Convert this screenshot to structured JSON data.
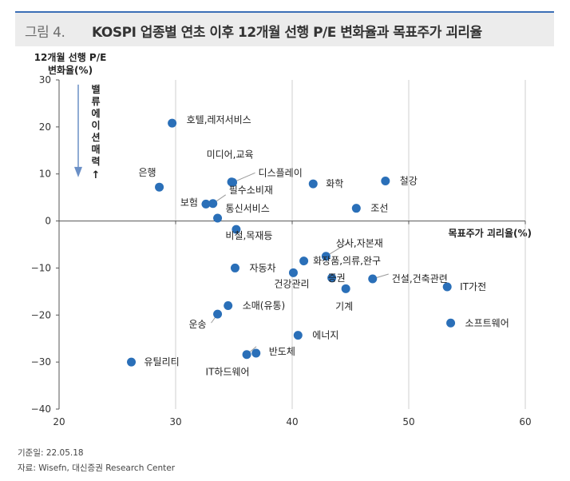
{
  "title_bar": {
    "number": "그림 4.",
    "title": "KOSPI 업종별 연초 이후 12개월 선행 P/E 변화율과 목표주가 괴리율"
  },
  "chart_data": {
    "type": "scatter",
    "ylabel_line1": "12개월 선행 P/E",
    "ylabel_line2": "변화율(%)",
    "xlabel": "목표주가 괴리율(%)",
    "annotation": "밸류에이션 매력",
    "xlim": [
      20,
      60
    ],
    "ylim": [
      -40,
      30
    ],
    "x_ticks": [
      20,
      30,
      40,
      50,
      60
    ],
    "y_ticks": [
      30,
      20,
      10,
      0,
      -10,
      -20,
      -30,
      -40
    ],
    "x_tick_labels": [
      "20",
      "30",
      "40",
      "50",
      "60"
    ],
    "y_tick_labels": [
      "30",
      "20",
      "10",
      "0",
      "−10",
      "−20",
      "−30",
      "−40"
    ],
    "grid": "vertical",
    "marker_color": "#2a6fb8",
    "points": [
      {
        "label": "호텔,레저서비스",
        "x": 29.7,
        "y": 20.8
      },
      {
        "label": "은행",
        "x": 28.6,
        "y": 7.2
      },
      {
        "label": "미디어,교육",
        "x": 34.8,
        "y": 8.3
      },
      {
        "label": "디스플레이",
        "x": 34.9,
        "y": 8.2
      },
      {
        "label": "필수소비재",
        "x": 33.2,
        "y": 3.7
      },
      {
        "label": "보험",
        "x": 32.6,
        "y": 3.6
      },
      {
        "label": "통신서비스",
        "x": 33.6,
        "y": 0.6
      },
      {
        "label": "화학",
        "x": 41.8,
        "y": 7.9
      },
      {
        "label": "철강",
        "x": 48.0,
        "y": 8.5
      },
      {
        "label": "조선",
        "x": 45.5,
        "y": 2.7
      },
      {
        "label": "비철,목재등",
        "x": 35.2,
        "y": -1.8
      },
      {
        "label": "상사,자본재",
        "x": 42.9,
        "y": -7.5
      },
      {
        "label": "화장품,의류,완구",
        "x": 41.0,
        "y": -8.5
      },
      {
        "label": "자동차",
        "x": 35.1,
        "y": -10.0
      },
      {
        "label": "건강관리",
        "x": 40.1,
        "y": -11.0
      },
      {
        "label": "증권",
        "x": 43.4,
        "y": -12.1
      },
      {
        "label": "건설,건축관련",
        "x": 46.9,
        "y": -12.3
      },
      {
        "label": "기계",
        "x": 44.6,
        "y": -14.4
      },
      {
        "label": "IT가전",
        "x": 53.3,
        "y": -14.0
      },
      {
        "label": "소매(유통)",
        "x": 34.5,
        "y": -18.0
      },
      {
        "label": "운송",
        "x": 33.6,
        "y": -19.8
      },
      {
        "label": "소프트웨어",
        "x": 53.6,
        "y": -21.7
      },
      {
        "label": "에너지",
        "x": 40.5,
        "y": -24.3
      },
      {
        "label": "반도체",
        "x": 36.9,
        "y": -28.1
      },
      {
        "label": "IT하드웨어",
        "x": 36.1,
        "y": -28.4
      },
      {
        "label": "유틸리티",
        "x": 26.2,
        "y": -30.0
      }
    ]
  },
  "footer": {
    "date": "기준일: 22.05.18",
    "source": "자료: Wisefn, 대신증권 Research Center"
  }
}
